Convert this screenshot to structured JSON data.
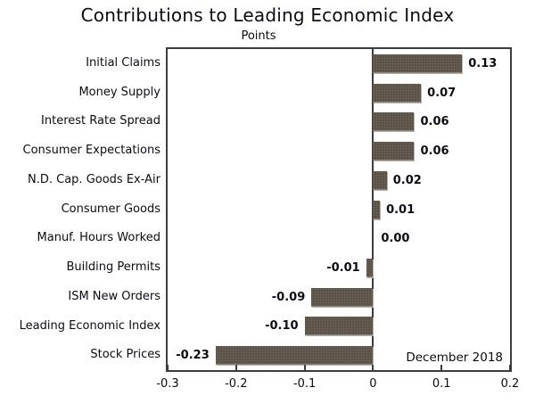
{
  "chart_data": {
    "type": "bar",
    "orientation": "horizontal",
    "title": "Contributions to Leading Economic Index",
    "axis_unit_label": "Points",
    "xlabel": "",
    "ylabel": "",
    "categories": [
      "Initial Claims",
      "Money Supply",
      "Interest Rate Spread",
      "Consumer Expectations",
      "N.D. Cap. Goods Ex-Air",
      "Consumer Goods",
      "Manuf. Hours Worked",
      "Building Permits",
      "ISM New Orders",
      "Leading Economic Index",
      "Stock Prices"
    ],
    "values": [
      0.13,
      0.07,
      0.06,
      0.06,
      0.02,
      0.01,
      0.0,
      -0.01,
      -0.09,
      -0.1,
      -0.23
    ],
    "value_labels": [
      "0.13",
      "0.07",
      "0.06",
      "0.06",
      "0.02",
      "0.01",
      "0.00",
      "-0.01",
      "-0.09",
      "-0.10",
      "-0.23"
    ],
    "xlim": [
      -0.3,
      0.2
    ],
    "xticks": [
      -0.3,
      -0.2,
      -0.1,
      0,
      0.1,
      0.2
    ],
    "xtick_labels": [
      "-0.3",
      "-0.2",
      "-0.1",
      "0",
      "0.1",
      "0.2"
    ],
    "annotation": "December 2018",
    "grid": false,
    "legend_position": "none",
    "bar_color": "#584f46",
    "bar_dot_color": "#6e6458",
    "axis_color": "#3d3d3d",
    "text_color": "#0c0c14"
  }
}
